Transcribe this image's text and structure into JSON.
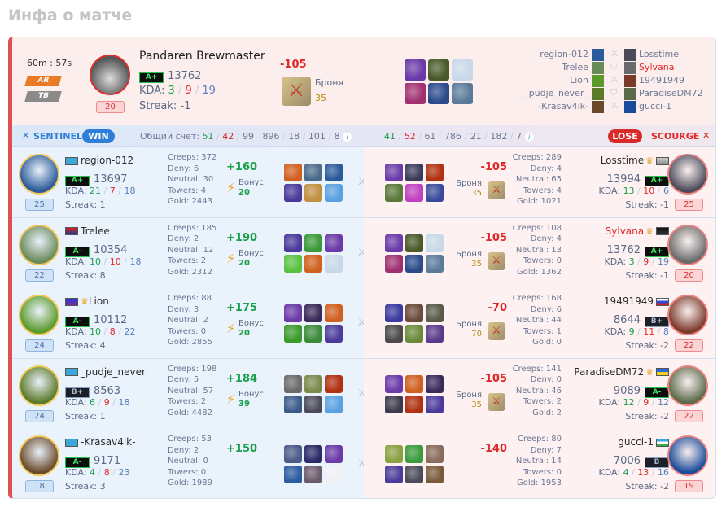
{
  "page_title": "Инфа о матче",
  "summary": {
    "duration": "60m : 57s",
    "mode_badges": [
      "AR",
      "TB"
    ],
    "hero_name": "Pandaren Brewmaster",
    "level": "20",
    "rank": "A+",
    "rating": "13762",
    "kda_label": "KDA:",
    "kills": "3",
    "deaths": "9",
    "assists": "19",
    "streak": "Streak: -1",
    "points": "-105",
    "armor_label": "Броня",
    "armor_value": "35",
    "items": [
      "#6a3aa8",
      "#4a5a2a",
      "#c8d8e8",
      "#a03070",
      "#2a4a8a",
      "#5a7a9a"
    ],
    "matchups": [
      {
        "left": "region-012",
        "right": "Losstime",
        "icon": "crossed-swords",
        "highlight": false
      },
      {
        "left": "Trelee",
        "right": "Sylvana",
        "icon": "shield",
        "highlight": true
      },
      {
        "left": "Lion",
        "right": "19491949",
        "icon": "crossed-swords",
        "highlight": false
      },
      {
        "left": "_pudje_never_",
        "right": "ParadiseDM72",
        "icon": "shield",
        "highlight": false
      },
      {
        "left": "-Krasav4ik-",
        "right": "gucci-1",
        "icon": "crossed-swords",
        "highlight": false
      }
    ]
  },
  "teams": {
    "sentinel": {
      "name": "SENTINEL",
      "result": "WIN",
      "score_label": "Общий счет:",
      "k": "51",
      "d": "42",
      "a": "99",
      "extra": [
        "896",
        "18",
        "101",
        "8"
      ],
      "color": "#2f7fd8"
    },
    "scourge": {
      "name": "SCOURGE",
      "result": "LOSE",
      "k": "41",
      "d": "52",
      "a": "61",
      "extra": [
        "786",
        "21",
        "182",
        "7"
      ],
      "color": "#e02828"
    }
  },
  "bonus_label": "Бонус",
  "armor_label": "Броня",
  "sentinel_players": [
    {
      "name": "region-012",
      "flag": "kz",
      "crown": false,
      "rank": "A+",
      "rating": "13697",
      "k": "21",
      "d": "7",
      "a": "18",
      "streak": "Streak: 1",
      "level": "25",
      "creeps": "Creeps: 372",
      "deny": "Deny: 6",
      "neutral": "Neutral: 30",
      "towers": "Towers: 4",
      "gold": "Gold: 2443",
      "points": "+160",
      "bonus": "20",
      "avatar": "#2a5a9a",
      "items": [
        "#d06020",
        "#4a6a8a",
        "#2a5a9a",
        "#4a3a9a",
        "#c09040",
        "#5aa0e0"
      ]
    },
    {
      "name": "Trelee",
      "flag": "superman",
      "crown": false,
      "rank": "A-",
      "rating": "10354",
      "k": "10",
      "d": "10",
      "a": "18",
      "streak": "Streak: 8",
      "level": "22",
      "creeps": "Creeps: 185",
      "deny": "Deny: 2",
      "neutral": "Neutral: 12",
      "towers": "Towers: 2",
      "gold": "Gold: 2312",
      "points": "+190",
      "bonus": "20",
      "avatar": "#6a8a5a",
      "items": [
        "#4a3a9a",
        "#3a9a3a",
        "#6a3aa8",
        "#5ac040",
        "#d06020",
        "#c8d8e8"
      ]
    },
    {
      "name": "Lion",
      "flag": "custom",
      "crown": true,
      "rank": "A-",
      "rating": "10112",
      "k": "10",
      "d": "8",
      "a": "22",
      "streak": "Streak: 4",
      "level": "24",
      "creeps": "Creeps: 88",
      "deny": "Deny: 3",
      "neutral": "Neutral: 2",
      "towers": "Towers: 0",
      "gold": "Gold: 2855",
      "points": "+175",
      "bonus": "20",
      "avatar": "#5a9a2a",
      "items": [
        "#6a3aa8",
        "#3a2a5a",
        "#d06020",
        "#3a9a2a",
        "#3a8a3a",
        "#4a3a9a"
      ]
    },
    {
      "name": "_pudje_never",
      "flag": "kz",
      "crown": false,
      "rank": "B+",
      "rating": "8563",
      "k": "6",
      "d": "9",
      "a": "18",
      "streak": "Streak: 1",
      "level": "24",
      "creeps": "Creeps: 198",
      "deny": "Deny: 5",
      "neutral": "Neutral: 57",
      "towers": "Towers: 2",
      "gold": "Gold: 4482",
      "points": "+184",
      "bonus": "39",
      "avatar": "#5a7a2a",
      "items": [
        "#6a6a6a",
        "#7a8a4a",
        "#b03010",
        "#3a5a8a",
        "#4a4a5a",
        "#5aa0e0"
      ]
    },
    {
      "name": "-Krasav4ik-",
      "flag": "kz",
      "crown": false,
      "rank": "A-",
      "rating": "9171",
      "k": "4",
      "d": "8",
      "a": "23",
      "streak": "Streak: 3",
      "level": "18",
      "creeps": "Creeps: 53",
      "deny": "Deny: 2",
      "neutral": "Neutral: 0",
      "towers": "Towers: 0",
      "gold": "Gold: 1989",
      "points": "+150",
      "bonus": null,
      "avatar": "#6a4a2a",
      "items": [
        "#4a5a8a",
        "#2a2a6a",
        "#6a3aa8",
        "#2a5aa0",
        "#6a5a6a",
        "#eef0f4"
      ]
    }
  ],
  "scourge_players": [
    {
      "name": "Losstime",
      "name_red": false,
      "badges": [
        "crown",
        "gamepad"
      ],
      "rank": "A+",
      "rating": "13994",
      "k": "13",
      "d": "10",
      "a": "6",
      "streak": "Streak: -1",
      "level": "25",
      "creeps": "Creeps: 289",
      "deny": "Deny: 4",
      "neutral": "Neutral: 65",
      "towers": "Towers: 4",
      "gold": "Gold: 1021",
      "points": "-105",
      "armor": "35",
      "avatar": "#4a4a5a",
      "items": [
        "#6a3aa8",
        "#3a3a5a",
        "#b03010",
        "#5a7a3a",
        "#c040c0",
        "#3a4a9a"
      ]
    },
    {
      "name": "Sylvana",
      "name_red": true,
      "badges": [
        "crown",
        "pirate"
      ],
      "rank": "A+",
      "rating": "13762",
      "k": "3",
      "d": "9",
      "a": "19",
      "streak": "Streak: -1",
      "level": "20",
      "creeps": "Creeps: 108",
      "deny": "Deny: 4",
      "neutral": "Neutral: 13",
      "towers": "Towers: 0",
      "gold": "Gold: 1362",
      "points": "-105",
      "armor": "35",
      "avatar": "#6a6a6a",
      "items": [
        "#6a3aa8",
        "#4a5a2a",
        "#c8d8e8",
        "#a03070",
        "#2a4a8a",
        "#5a7a9a"
      ]
    },
    {
      "name": "19491949",
      "name_red": false,
      "badges": [
        "ru"
      ],
      "rank": "B+",
      "rating": "8644",
      "k": "9",
      "d": "11",
      "a": "8",
      "streak": "Streak: -2",
      "level": "22",
      "creeps": "Creeps: 168",
      "deny": "Deny: 6",
      "neutral": "Neutral: 44",
      "towers": "Towers: 1",
      "gold": "Gold: 0",
      "points": "-70",
      "armor": "70",
      "avatar": "#7a3a2a",
      "items": [
        "#3a3aa0",
        "#6a4a3a",
        "#5a5a4a",
        "#4a4a4a",
        "#6a8a3a",
        "#5a3a8a"
      ]
    },
    {
      "name": "ParadiseDM72",
      "name_red": false,
      "badges": [
        "crown",
        "ua"
      ],
      "rank": "A-",
      "rating": "9089",
      "k": "12",
      "d": "9",
      "a": "12",
      "streak": "Streak: -2",
      "level": "22",
      "creeps": "Creeps: 141",
      "deny": "Deny: 0",
      "neutral": "Neutral: 46",
      "towers": "Towers: 2",
      "gold": "Gold: 2",
      "points": "-105",
      "armor": "35",
      "avatar": "#5a6a4a",
      "items": [
        "#6a3aa8",
        "#d06020",
        "#3a2a5a",
        "#3a3a4a",
        "#b03010",
        "#4a3a9a"
      ]
    },
    {
      "name": "gucci-1",
      "name_red": false,
      "badges": [
        "uz"
      ],
      "rank": "B",
      "rating": "7006",
      "k": "4",
      "d": "13",
      "a": "16",
      "streak": "Streak: -2",
      "level": "19",
      "creeps": "Creeps: 80",
      "deny": "Deny: 7",
      "neutral": "Neutral: 14",
      "towers": "Towers: 0",
      "gold": "Gold: 1953",
      "points": "-140",
      "armor": null,
      "avatar": "#1a4a9a",
      "items": [
        "#8aa040",
        "#3a9a3a",
        "#8a6a5a",
        "#4a3a9a",
        "#4a4a5a",
        "#7a5a3a"
      ]
    }
  ]
}
